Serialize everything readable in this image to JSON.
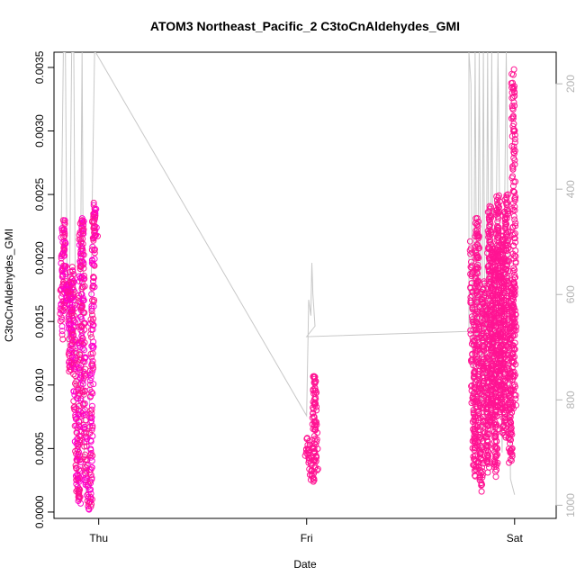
{
  "chart_data": {
    "type": "scatter",
    "title": "ATOM3 Northeast_Pacific_2 C3toCnAldehydes_GMI",
    "xlabel": "Date",
    "ylabel": "C3toCnAldehydes_GMI",
    "x_ticks": [
      "Thu",
      "Fri",
      "Sat"
    ],
    "x_tick_days": [
      0,
      1,
      2
    ],
    "x_range_days": [
      -0.215,
      2.2
    ],
    "ylim": [
      -5e-05,
      0.00362
    ],
    "y_ticks": [
      0.0,
      0.0005,
      0.001,
      0.0015,
      0.002,
      0.0025,
      0.003,
      0.0035
    ],
    "y_tick_labels": [
      "0.0000",
      "0.0005",
      "0.0010",
      "0.0015",
      "0.0020",
      "0.0025",
      "0.0030",
      "0.0035"
    ],
    "right_axis": {
      "description": "pressure (reversed axis, grey line)",
      "range": [
        1025,
        140
      ],
      "ticks": [
        200,
        400,
        600,
        800,
        1000
      ],
      "tick_labels": [
        "200",
        "400",
        "600",
        "800",
        "1000"
      ]
    },
    "colors": {
      "points": "#ff1493",
      "points_alt": "#ff00cc",
      "pressure_line": "#c8c8c8",
      "axis": "#000000",
      "right_axis": "#b3b3b3"
    },
    "grid": false,
    "series": [
      {
        "role": "points",
        "segments": [
          {
            "x0": -0.18,
            "x1": -0.01,
            "anchors": [
              [
                -0.18,
                0.0014
              ],
              [
                -0.17,
                0.0023
              ],
              [
                -0.16,
                0.0016
              ],
              [
                -0.15,
                0.0018
              ],
              [
                -0.14,
                0.0017
              ],
              [
                -0.135,
                0.0011
              ],
              [
                -0.13,
                0.0019
              ],
              [
                -0.12,
                0.0016
              ],
              [
                -0.11,
                0.0007
              ],
              [
                -0.1,
                0.0002
              ],
              [
                -0.095,
                8e-05
              ],
              [
                -0.09,
                0.0012
              ],
              [
                -0.085,
                0.0022
              ],
              [
                -0.08,
                0.0023
              ],
              [
                -0.075,
                0.0018
              ],
              [
                -0.07,
                0.0009
              ],
              [
                -0.06,
                0.0003
              ],
              [
                -0.05,
                7e-05
              ],
              [
                -0.04,
                5e-05
              ],
              [
                -0.035,
                0.0008
              ],
              [
                -0.03,
                0.0016
              ],
              [
                -0.025,
                0.0022
              ],
              [
                -0.02,
                0.0024
              ],
              [
                -0.015,
                0.0022
              ],
              [
                -0.01,
                0.00215
              ]
            ]
          },
          {
            "x0": 1.0,
            "x1": 1.05,
            "anchors": [
              [
                1.0,
                0.00045
              ],
              [
                1.01,
                0.00055
              ],
              [
                1.02,
                0.0003
              ],
              [
                1.03,
                0.00025
              ],
              [
                1.035,
                0.0008
              ],
              [
                1.04,
                0.0011
              ],
              [
                1.045,
                0.0004
              ],
              [
                1.05,
                0.00035
              ]
            ]
          },
          {
            "x0": 1.79,
            "x1": 2.0,
            "anchors": [
              [
                1.79,
                0.0021
              ],
              [
                1.8,
                0.0008
              ],
              [
                1.81,
                0.0003
              ],
              [
                1.82,
                0.0023
              ],
              [
                1.83,
                0.0004
              ],
              [
                1.84,
                0.0002
              ],
              [
                1.85,
                0.0018
              ],
              [
                1.86,
                0.0012
              ],
              [
                1.87,
                0.00035
              ],
              [
                1.88,
                0.0024
              ],
              [
                1.89,
                0.0007
              ],
              [
                1.9,
                0.0021
              ],
              [
                1.91,
                0.0003
              ],
              [
                1.92,
                0.0025
              ],
              [
                1.93,
                0.0008
              ],
              [
                1.94,
                0.0022
              ],
              [
                1.95,
                0.0006
              ],
              [
                1.96,
                0.0025
              ],
              [
                1.97,
                0.0015
              ],
              [
                1.98,
                0.0004
              ],
              [
                1.99,
                0.0018
              ],
              [
                2.0,
                0.0008
              ]
            ]
          },
          {
            "x0": 1.99,
            "x1": 2.0,
            "anchors": [
              [
                1.99,
                0.00345
              ],
              [
                1.992,
                0.0033
              ],
              [
                1.994,
                0.003
              ],
              [
                1.996,
                0.0024
              ],
              [
                1.998,
                0.0018
              ],
              [
                2.0,
                0.0014
              ]
            ]
          }
        ]
      },
      {
        "role": "pressure_line",
        "description": "flight altitude pressure trace on right axis",
        "points": [
          [
            -0.18,
            480
          ],
          [
            -0.17,
            140
          ],
          [
            -0.16,
            140
          ],
          [
            -0.15,
            700
          ],
          [
            -0.14,
            600
          ],
          [
            -0.13,
            140
          ],
          [
            -0.12,
            140
          ],
          [
            -0.11,
            800
          ],
          [
            -0.1,
            980
          ],
          [
            -0.09,
            700
          ],
          [
            -0.08,
            140
          ],
          [
            -0.07,
            900
          ],
          [
            -0.06,
            990
          ],
          [
            -0.05,
            990
          ],
          [
            -0.04,
            700
          ],
          [
            -0.03,
            400
          ],
          [
            -0.02,
            140
          ],
          [
            -0.015,
            140
          ],
          [
            1.0,
            830
          ],
          [
            1.01,
            610
          ],
          [
            1.02,
            640
          ],
          [
            1.025,
            540
          ],
          [
            1.03,
            600
          ],
          [
            1.04,
            660
          ],
          [
            1.0,
            680
          ],
          [
            1.78,
            670
          ],
          [
            1.78,
            140
          ],
          [
            1.79,
            200
          ],
          [
            1.8,
            900
          ],
          [
            1.81,
            140
          ],
          [
            1.82,
            800
          ],
          [
            1.83,
            140
          ],
          [
            1.84,
            900
          ],
          [
            1.85,
            140
          ],
          [
            1.86,
            900
          ],
          [
            1.87,
            140
          ],
          [
            1.88,
            850
          ],
          [
            1.89,
            140
          ],
          [
            1.9,
            900
          ],
          [
            1.92,
            140
          ],
          [
            1.94,
            900
          ],
          [
            1.96,
            140
          ],
          [
            1.98,
            950
          ],
          [
            2.0,
            980
          ]
        ]
      }
    ]
  }
}
